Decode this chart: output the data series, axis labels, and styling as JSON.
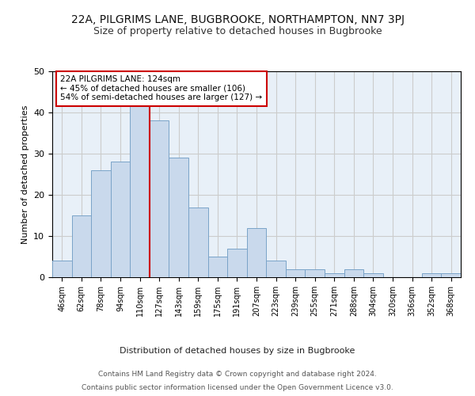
{
  "title1": "22A, PILGRIMS LANE, BUGBROOKE, NORTHAMPTON, NN7 3PJ",
  "title2": "Size of property relative to detached houses in Bugbrooke",
  "xlabel": "Distribution of detached houses by size in Bugbrooke",
  "ylabel": "Number of detached properties",
  "bar_labels": [
    "46sqm",
    "62sqm",
    "78sqm",
    "94sqm",
    "110sqm",
    "127sqm",
    "143sqm",
    "159sqm",
    "175sqm",
    "191sqm",
    "207sqm",
    "223sqm",
    "239sqm",
    "255sqm",
    "271sqm",
    "288sqm",
    "304sqm",
    "320sqm",
    "336sqm",
    "352sqm",
    "368sqm"
  ],
  "bar_values": [
    4,
    15,
    26,
    28,
    42,
    38,
    29,
    17,
    5,
    7,
    12,
    4,
    2,
    2,
    1,
    2,
    1,
    0,
    0,
    1,
    1
  ],
  "bar_color": "#c9d9ec",
  "bar_edgecolor": "#7aa3c8",
  "vline_x_index": 4.5,
  "vline_color": "#cc0000",
  "annotation_text": "22A PILGRIMS LANE: 124sqm\n← 45% of detached houses are smaller (106)\n54% of semi-detached houses are larger (127) →",
  "annotation_box_edgecolor": "#cc0000",
  "annotation_box_facecolor": "#ffffff",
  "ylim": [
    0,
    50
  ],
  "footer1": "Contains HM Land Registry data © Crown copyright and database right 2024.",
  "footer2": "Contains public sector information licensed under the Open Government Licence v3.0.",
  "bg_color": "#ffffff",
  "grid_color": "#cccccc",
  "title1_fontsize": 10,
  "title2_fontsize": 9,
  "bar_width": 1.0
}
